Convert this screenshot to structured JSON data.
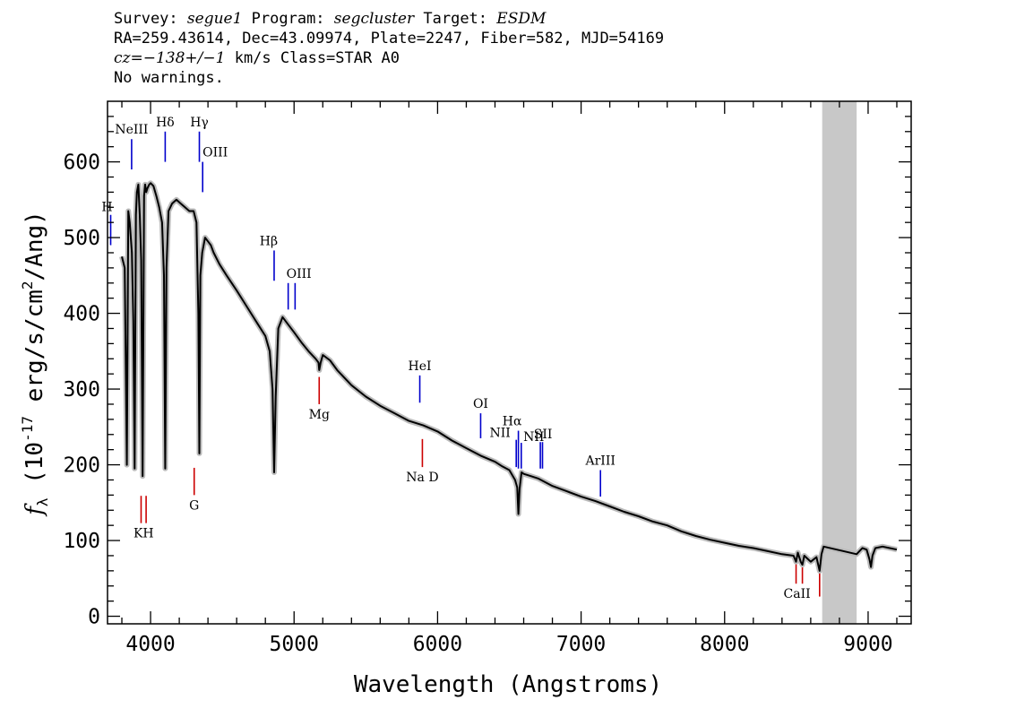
{
  "header": {
    "survey_label": "Survey:",
    "survey": "segue1",
    "program_label": "Program:",
    "program": "segcluster",
    "target_label": "Target:",
    "target": "ESDM",
    "line2": "RA=259.43614, Dec=43.09974, Plate=2247, Fiber=582, MJD=54169",
    "cz": "cz=−138+/−1",
    "cz_unit": "km/s Class=STAR A0",
    "warnings": "No warnings."
  },
  "chart_data": {
    "type": "line",
    "xlabel": "Wavelength (Angstroms)",
    "ylabel": "f_λ (10^-17 erg/s/cm^2/Ang)",
    "xlim": [
      3700,
      9300
    ],
    "ylim": [
      -10,
      680
    ],
    "x_ticks": [
      4000,
      5000,
      6000,
      7000,
      8000,
      9000
    ],
    "y_ticks": [
      0,
      100,
      200,
      300,
      400,
      500,
      600
    ],
    "masked_region": [
      8680,
      8920
    ],
    "spectrum_color": "#000000",
    "error_color": "#bbbbbb",
    "mask_color": "#c8c8c8",
    "emission_line_color": "#0000cc",
    "absorption_line_color": "#cc0000",
    "emission_lines": [
      {
        "label": "H",
        "x": 3722,
        "y0": 490,
        "y1": 530
      },
      {
        "label": "NeIII",
        "x": 3868,
        "y0": 590,
        "y1": 630
      },
      {
        "label": "Hδ",
        "x": 4102,
        "y0": 600,
        "y1": 640
      },
      {
        "label": "Hγ",
        "x": 4340,
        "y0": 600,
        "y1": 640
      },
      {
        "label": "OIII",
        "x": 4363,
        "y0": 560,
        "y1": 600
      },
      {
        "label": "Hβ",
        "x": 4861,
        "y0": 443,
        "y1": 483
      },
      {
        "label": "OIII",
        "x": 4959,
        "y0": 405,
        "y1": 440
      },
      {
        "label": "OIII",
        "x": 5007,
        "y0": 405,
        "y1": 440
      },
      {
        "label": "HeI",
        "x": 5876,
        "y0": 282,
        "y1": 318
      },
      {
        "label": "OI",
        "x": 6300,
        "y0": 235,
        "y1": 268
      },
      {
        "label": "NII",
        "x": 6548,
        "y0": 197,
        "y1": 233
      },
      {
        "label": "Hα",
        "x": 6563,
        "y0": 195,
        "y1": 245
      },
      {
        "label": "NII",
        "x": 6583,
        "y0": 195,
        "y1": 229
      },
      {
        "label": "SII",
        "x": 6716,
        "y0": 195,
        "y1": 230
      },
      {
        "label": "SII",
        "x": 6731,
        "y0": 195,
        "y1": 230
      },
      {
        "label": "ArIII",
        "x": 7135,
        "y0": 158,
        "y1": 193
      }
    ],
    "absorption_lines": [
      {
        "label": "K",
        "x": 3934,
        "y0": 123,
        "y1": 159
      },
      {
        "label": "H",
        "x": 3969,
        "y0": 123,
        "y1": 159
      },
      {
        "label": "G",
        "x": 4304,
        "y0": 160,
        "y1": 196
      },
      {
        "label": "Mg",
        "x": 5175,
        "y0": 280,
        "y1": 316
      },
      {
        "label": "Na D",
        "x": 5894,
        "y0": 197,
        "y1": 234
      },
      {
        "label": "CaII",
        "x": 8498,
        "y0": 43,
        "y1": 79
      },
      {
        "label": "CaII",
        "x": 8542,
        "y0": 43,
        "y1": 79
      },
      {
        "label": "CaII",
        "x": 8662,
        "y0": 26,
        "y1": 63
      }
    ],
    "spectrum": {
      "x": [
        3800,
        3820,
        3835,
        3845,
        3855,
        3870,
        3880,
        3889,
        3898,
        3905,
        3915,
        3925,
        3935,
        3945,
        3955,
        3962,
        3970,
        3978,
        3990,
        4000,
        4020,
        4040,
        4060,
        4080,
        4093,
        4102,
        4111,
        4125,
        4150,
        4180,
        4210,
        4240,
        4270,
        4300,
        4320,
        4333,
        4340,
        4347,
        4360,
        4380,
        4400,
        4420,
        4440,
        4480,
        4530,
        4600,
        4650,
        4700,
        4750,
        4800,
        4830,
        4850,
        4861,
        4872,
        4890,
        4920,
        4960,
        5000,
        5050,
        5100,
        5150,
        5170,
        5175,
        5185,
        5200,
        5250,
        5300,
        5400,
        5500,
        5600,
        5700,
        5800,
        5900,
        6000,
        6100,
        6200,
        6300,
        6400,
        6450,
        6500,
        6540,
        6555,
        6563,
        6571,
        6585,
        6600,
        6650,
        6700,
        6800,
        6900,
        7000,
        7100,
        7200,
        7300,
        7400,
        7500,
        7600,
        7700,
        7800,
        7900,
        8000,
        8100,
        8200,
        8300,
        8400,
        8480,
        8498,
        8510,
        8530,
        8542,
        8555,
        8600,
        8640,
        8662,
        8675,
        8690,
        8920,
        8960,
        8990,
        9010,
        9020,
        9030,
        9050,
        9100,
        9150,
        9200
      ],
      "y": [
        475,
        460,
        200,
        535,
        520,
        480,
        390,
        195,
        530,
        560,
        570,
        530,
        470,
        185,
        555,
        570,
        560,
        565,
        570,
        572,
        568,
        555,
        540,
        520,
        450,
        195,
        460,
        535,
        545,
        550,
        545,
        540,
        535,
        535,
        520,
        400,
        215,
        450,
        480,
        500,
        495,
        490,
        480,
        465,
        450,
        430,
        415,
        400,
        385,
        370,
        350,
        300,
        190,
        290,
        380,
        395,
        385,
        375,
        362,
        350,
        340,
        335,
        325,
        335,
        345,
        338,
        325,
        305,
        290,
        278,
        268,
        258,
        252,
        244,
        232,
        222,
        212,
        204,
        198,
        193,
        180,
        170,
        135,
        168,
        190,
        188,
        185,
        182,
        172,
        165,
        158,
        152,
        145,
        138,
        132,
        125,
        120,
        112,
        106,
        101,
        97,
        93,
        90,
        86,
        82,
        80,
        72,
        84,
        72,
        68,
        80,
        72,
        78,
        60,
        82,
        92,
        82,
        90,
        88,
        75,
        65,
        80,
        90,
        92,
        90,
        88
      ]
    }
  }
}
